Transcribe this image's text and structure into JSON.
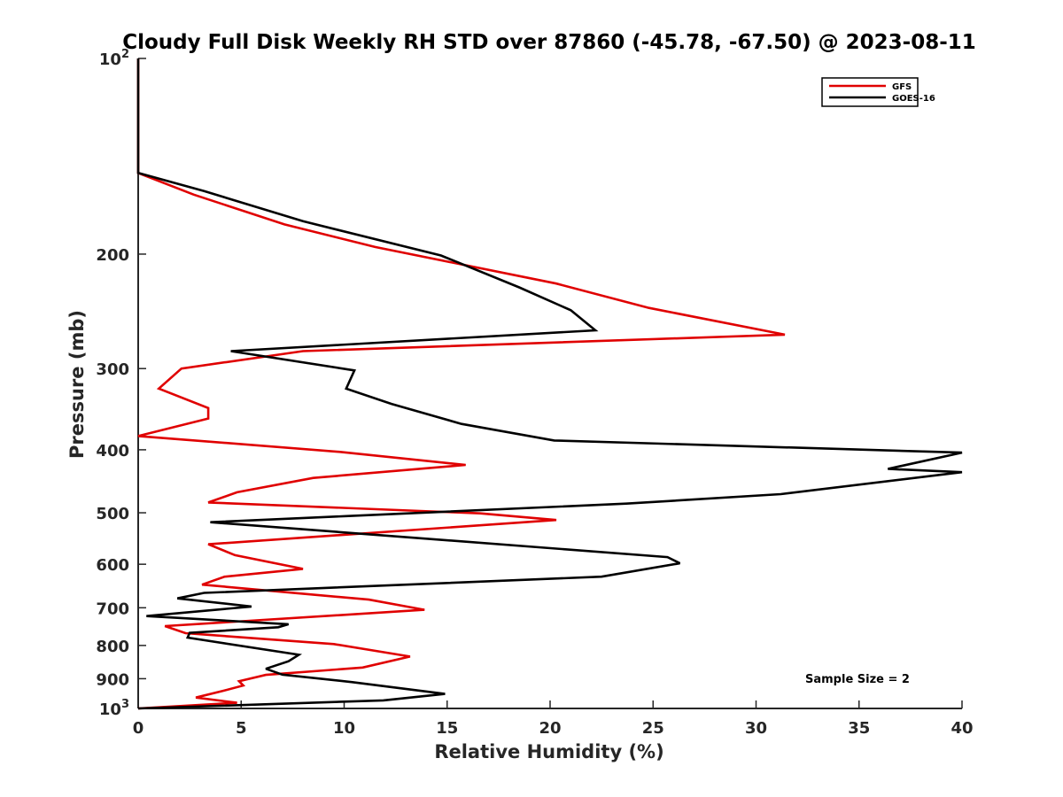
{
  "chart_data": {
    "type": "line",
    "title": "Cloudy Full Disk Weekly RH STD over 87860 (-45.78, -67.50) @ 2023-08-11",
    "xlabel": "Relative Humidity (%)",
    "ylabel": "Pressure (mb)",
    "xlim": [
      0,
      40
    ],
    "ylim": [
      100,
      1000
    ],
    "yscale": "log",
    "yreversed": true,
    "xticks": [
      "0",
      "5",
      "10",
      "15",
      "20",
      "25",
      "30",
      "35",
      "40"
    ],
    "yticks": [
      {
        "value": 100,
        "base": "10",
        "exp": "2"
      },
      {
        "value": 200,
        "label": "200"
      },
      {
        "value": 300,
        "label": "300"
      },
      {
        "value": 400,
        "label": "400"
      },
      {
        "value": 500,
        "label": "500"
      },
      {
        "value": 600,
        "label": "600"
      },
      {
        "value": 700,
        "label": "700"
      },
      {
        "value": 800,
        "label": "800"
      },
      {
        "value": 900,
        "label": "900"
      },
      {
        "value": 1000,
        "base": "10",
        "exp": "3"
      }
    ],
    "legend_position": "top-right",
    "annotation": "Sample Size = 2",
    "series": [
      {
        "name": "GFS",
        "color": "#e00000",
        "points": [
          [
            0,
            100
          ],
          [
            0,
            150
          ],
          [
            2.7,
            162
          ],
          [
            7.1,
            180
          ],
          [
            11.5,
            195
          ],
          [
            20.3,
            222
          ],
          [
            24.8,
            242
          ],
          [
            31.4,
            266
          ],
          [
            8,
            282
          ],
          [
            2.1,
            300
          ],
          [
            1,
            322
          ],
          [
            3.4,
            345
          ],
          [
            3.4,
            358
          ],
          [
            0,
            381
          ],
          [
            9.8,
            403
          ],
          [
            15.9,
            422
          ],
          [
            8.5,
            442
          ],
          [
            4.8,
            465
          ],
          [
            3.4,
            482
          ],
          [
            16.6,
            501
          ],
          [
            20.3,
            513
          ],
          [
            3.4,
            559
          ],
          [
            4.7,
            581
          ],
          [
            8,
            610
          ],
          [
            4.2,
            627
          ],
          [
            3.1,
            645
          ],
          [
            11.2,
            680
          ],
          [
            13.9,
            705
          ],
          [
            1.3,
            747
          ],
          [
            2.3,
            766
          ],
          [
            9.5,
            796
          ],
          [
            13.2,
            832
          ],
          [
            10.9,
            865
          ],
          [
            6.2,
            888
          ],
          [
            4.9,
            908
          ],
          [
            5.1,
            922
          ],
          [
            4.1,
            940
          ],
          [
            2.8,
            962
          ],
          [
            4.8,
            980
          ],
          [
            0,
            1000
          ]
        ]
      },
      {
        "name": "GOES-16",
        "color": "#000000",
        "points": [
          [
            0,
            100
          ],
          [
            0,
            150
          ],
          [
            3.2,
            160
          ],
          [
            8,
            178
          ],
          [
            14.7,
            201
          ],
          [
            18.5,
            225
          ],
          [
            21,
            244
          ],
          [
            22.2,
            262
          ],
          [
            4.5,
            282
          ],
          [
            10.5,
            302
          ],
          [
            10.1,
            322
          ],
          [
            12.3,
            340
          ],
          [
            15.7,
            365
          ],
          [
            20.2,
            387
          ],
          [
            40,
            404
          ],
          [
            36.4,
            428
          ],
          [
            40,
            433
          ],
          [
            31.2,
            468
          ],
          [
            23.7,
            484
          ],
          [
            10.1,
            506
          ],
          [
            3.5,
            517
          ],
          [
            25.7,
            585
          ],
          [
            26.3,
            598
          ],
          [
            22.5,
            627
          ],
          [
            3.2,
            664
          ],
          [
            1.9,
            677
          ],
          [
            5.5,
            697
          ],
          [
            0.4,
            721
          ],
          [
            7.3,
            742
          ],
          [
            6.8,
            750
          ],
          [
            2.5,
            765
          ],
          [
            2.4,
            778
          ],
          [
            7.8,
            827
          ],
          [
            7.3,
            846
          ],
          [
            6.2,
            869
          ],
          [
            7,
            887
          ],
          [
            10.4,
            911
          ],
          [
            14.9,
            950
          ],
          [
            11.9,
            972
          ],
          [
            0,
            1000
          ]
        ]
      }
    ]
  }
}
